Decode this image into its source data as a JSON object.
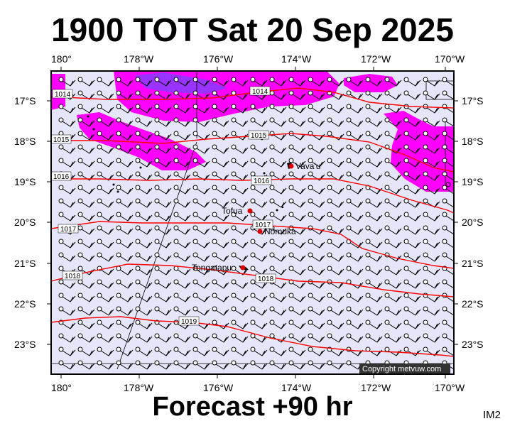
{
  "title": "1900 TOT Sat 20 Sep 2025",
  "footer": "Forecast +90 hr",
  "image_tag": "IM2",
  "copyright": "Copyright metvuw.com",
  "colors": {
    "background": "#e6e6fa",
    "precip_light": "#ff00ff",
    "precip_heavy": "#9933ff",
    "isobar": "#ff0000",
    "place_marker": "#dd0000"
  },
  "axes": {
    "lon_labels": [
      "180°",
      "178°W",
      "176°W",
      "174°W",
      "172°W",
      "170°W"
    ],
    "lat_labels": [
      "17°S",
      "18°S",
      "19°S",
      "20°S",
      "21°S",
      "22°S",
      "23°S"
    ]
  },
  "isobars": [
    {
      "value": "1014"
    },
    {
      "value": "1014"
    },
    {
      "value": "1015"
    },
    {
      "value": "1015"
    },
    {
      "value": "1016"
    },
    {
      "value": "1016"
    },
    {
      "value": "1017"
    },
    {
      "value": "1017"
    },
    {
      "value": "1018"
    },
    {
      "value": "1018"
    },
    {
      "value": "1019"
    }
  ],
  "places": [
    {
      "name": "Vava'u"
    },
    {
      "name": "Tofua"
    },
    {
      "name": "Nomuka"
    },
    {
      "name": "Tongatapu"
    }
  ],
  "wind_barbs": {
    "direction": "from east-southeast",
    "icon": "wind-barb-icon"
  }
}
